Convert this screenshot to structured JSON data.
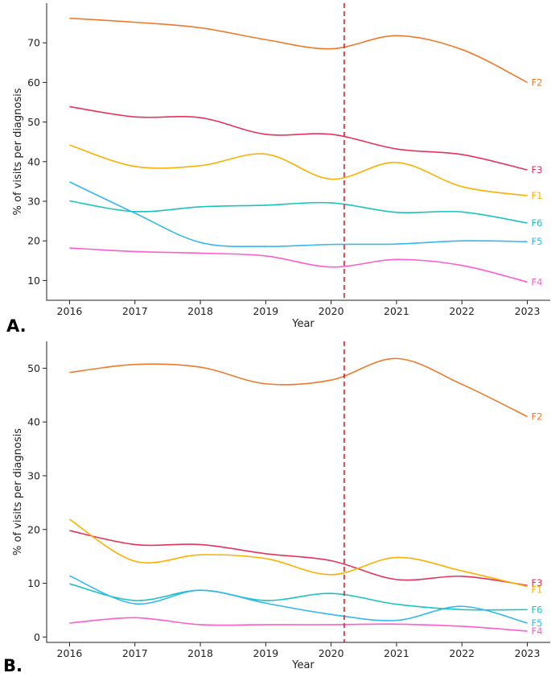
{
  "chart_data": [
    {
      "panel": "A.",
      "type": "line",
      "xlabel": "Year",
      "ylabel": "% of visits per diagnosis",
      "xlim": [
        2015.65,
        2023.35
      ],
      "ylim": [
        5,
        80
      ],
      "xticks": [
        2016,
        2017,
        2018,
        2019,
        2020,
        2021,
        2022,
        2023
      ],
      "yticks": [
        10,
        20,
        30,
        40,
        50,
        60,
        70
      ],
      "vline": {
        "x": 2020.2,
        "style": "dashed",
        "color": "#e02020"
      },
      "series": [
        {
          "name": "F2",
          "color": "#f07a2a",
          "x": [
            2016,
            2017,
            2018,
            2019,
            2020,
            2021,
            2022,
            2023
          ],
          "values": [
            76.2,
            75.2,
            73.8,
            70.8,
            68.5,
            71.8,
            68.3,
            60.0
          ]
        },
        {
          "name": "F3",
          "color": "#e6325a",
          "x": [
            2016,
            2017,
            2018,
            2019,
            2020,
            2021,
            2022,
            2023
          ],
          "values": [
            53.9,
            51.3,
            51.1,
            46.9,
            46.9,
            43.2,
            41.8,
            37.9
          ]
        },
        {
          "name": "F1",
          "color": "#ffb000",
          "x": [
            2016,
            2017,
            2018,
            2019,
            2020,
            2021,
            2022,
            2023
          ],
          "values": [
            44.2,
            38.8,
            39.0,
            41.9,
            35.6,
            39.8,
            33.7,
            31.4
          ]
        },
        {
          "name": "F6",
          "color": "#1ac4be",
          "x": [
            2016,
            2017,
            2018,
            2019,
            2020,
            2021,
            2022,
            2023
          ],
          "values": [
            30.1,
            27.4,
            28.6,
            29.0,
            29.6,
            27.2,
            27.3,
            24.5
          ]
        },
        {
          "name": "F5",
          "color": "#33b8f0",
          "x": [
            2016,
            2017,
            2018,
            2019,
            2020,
            2021,
            2022,
            2023
          ],
          "values": [
            34.9,
            27.0,
            19.6,
            18.6,
            19.1,
            19.2,
            20.0,
            19.8
          ]
        },
        {
          "name": "F4",
          "color": "#ff5ccc",
          "x": [
            2016,
            2017,
            2018,
            2019,
            2020,
            2021,
            2022,
            2023
          ],
          "values": [
            18.2,
            17.3,
            16.9,
            16.2,
            13.4,
            15.3,
            13.8,
            9.6
          ]
        }
      ]
    },
    {
      "panel": "B.",
      "type": "line",
      "xlabel": "Year",
      "ylabel": "% of visits per diagnosis",
      "xlim": [
        2015.65,
        2023.35
      ],
      "ylim": [
        -1,
        55
      ],
      "xticks": [
        2016,
        2017,
        2018,
        2019,
        2020,
        2021,
        2022,
        2023
      ],
      "yticks": [
        0,
        10,
        20,
        30,
        40,
        50
      ],
      "vline": {
        "x": 2020.2,
        "style": "dashed",
        "color": "#e02020"
      },
      "series": [
        {
          "name": "F2",
          "color": "#f07a2a",
          "x": [
            2016,
            2017,
            2018,
            2019,
            2020,
            2021,
            2022,
            2023
          ],
          "values": [
            49.2,
            50.7,
            50.2,
            47.1,
            47.8,
            51.8,
            47.0,
            41.0
          ]
        },
        {
          "name": "F3",
          "color": "#e6325a",
          "x": [
            2016,
            2017,
            2018,
            2019,
            2020,
            2021,
            2022,
            2023
          ],
          "values": [
            19.8,
            17.2,
            17.2,
            15.5,
            14.2,
            10.7,
            11.3,
            9.6
          ]
        },
        {
          "name": "F1",
          "color": "#ffb000",
          "x": [
            2016,
            2017,
            2018,
            2019,
            2020,
            2021,
            2022,
            2023
          ],
          "values": [
            21.9,
            14.1,
            15.3,
            14.6,
            11.6,
            14.8,
            12.3,
            9.4
          ]
        },
        {
          "name": "F6",
          "color": "#1ac4be",
          "x": [
            2016,
            2017,
            2018,
            2019,
            2020,
            2021,
            2022,
            2023
          ],
          "values": [
            9.9,
            6.8,
            8.7,
            6.8,
            8.1,
            6.1,
            5.1,
            5.1
          ]
        },
        {
          "name": "F5",
          "color": "#33b8f0",
          "x": [
            2016,
            2017,
            2018,
            2019,
            2020,
            2021,
            2022,
            2023
          ],
          "values": [
            11.4,
            6.2,
            8.7,
            6.3,
            4.2,
            3.1,
            5.7,
            2.6
          ]
        },
        {
          "name": "F4",
          "color": "#ff5ccc",
          "x": [
            2016,
            2017,
            2018,
            2019,
            2020,
            2021,
            2022,
            2023
          ],
          "values": [
            2.6,
            3.6,
            2.3,
            2.3,
            2.3,
            2.4,
            2.0,
            1.1
          ]
        }
      ]
    }
  ]
}
